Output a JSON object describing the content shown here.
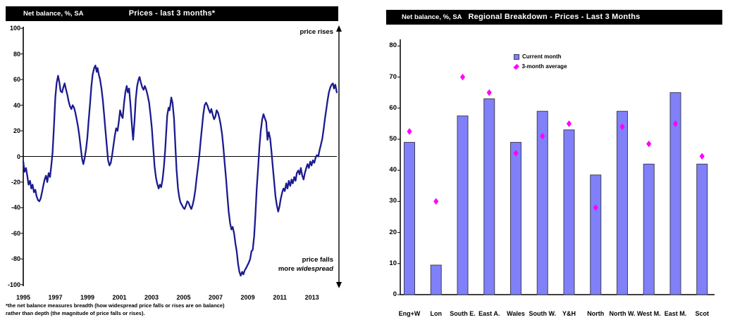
{
  "chart_data": [
    {
      "type": "line",
      "title": "Prices - last 3 months*",
      "unit_label": "Net balance, %, SA",
      "xlabel": "",
      "ylabel": "Net balance, %, SA",
      "ylim": [
        -100,
        100
      ],
      "xlim": [
        1995,
        2014.6
      ],
      "y_ticks": [
        100,
        80,
        60,
        40,
        20,
        0,
        -20,
        -40,
        -60,
        -80,
        -100
      ],
      "x_ticks": [
        1995,
        1997,
        1999,
        2001,
        2003,
        2005,
        2007,
        2009,
        2011,
        2013
      ],
      "grid": false,
      "line_color": "#1b1b8f",
      "annotations": {
        "top": "price rises",
        "bottom_line1": "price falls",
        "bottom_line2_parts": [
          "more ",
          "widespread"
        ]
      },
      "footnotes": [
        "*the net balance measures breadth (how widespread price falls or rises are on balance)",
        "rather than depth (the magnitude of price falls or rises)."
      ],
      "series": [
        {
          "name": "Net balance",
          "points": [
            [
              1995.0,
              -4
            ],
            [
              1995.08,
              -12
            ],
            [
              1995.17,
              -9
            ],
            [
              1995.25,
              -15
            ],
            [
              1995.33,
              -22
            ],
            [
              1995.42,
              -19
            ],
            [
              1995.5,
              -25
            ],
            [
              1995.58,
              -22
            ],
            [
              1995.67,
              -28
            ],
            [
              1995.75,
              -26
            ],
            [
              1995.83,
              -31
            ],
            [
              1995.92,
              -34
            ],
            [
              1996.0,
              -35
            ],
            [
              1996.08,
              -33
            ],
            [
              1996.17,
              -28
            ],
            [
              1996.25,
              -23
            ],
            [
              1996.33,
              -18
            ],
            [
              1996.42,
              -15
            ],
            [
              1996.5,
              -20
            ],
            [
              1996.58,
              -13
            ],
            [
              1996.67,
              -16
            ],
            [
              1996.75,
              -7
            ],
            [
              1996.83,
              3
            ],
            [
              1996.92,
              25
            ],
            [
              1997.0,
              46
            ],
            [
              1997.08,
              57
            ],
            [
              1997.17,
              63
            ],
            [
              1997.25,
              58
            ],
            [
              1997.33,
              51
            ],
            [
              1997.42,
              50
            ],
            [
              1997.5,
              54
            ],
            [
              1997.58,
              57
            ],
            [
              1997.67,
              52
            ],
            [
              1997.75,
              48
            ],
            [
              1997.83,
              43
            ],
            [
              1997.92,
              39
            ],
            [
              1998.0,
              37
            ],
            [
              1998.08,
              40
            ],
            [
              1998.17,
              38
            ],
            [
              1998.25,
              34
            ],
            [
              1998.33,
              29
            ],
            [
              1998.42,
              23
            ],
            [
              1998.5,
              16
            ],
            [
              1998.58,
              7
            ],
            [
              1998.67,
              -2
            ],
            [
              1998.75,
              -6
            ],
            [
              1998.83,
              -1
            ],
            [
              1998.92,
              6
            ],
            [
              1999.0,
              15
            ],
            [
              1999.08,
              28
            ],
            [
              1999.17,
              42
            ],
            [
              1999.25,
              55
            ],
            [
              1999.33,
              64
            ],
            [
              1999.42,
              69
            ],
            [
              1999.5,
              71
            ],
            [
              1999.58,
              66
            ],
            [
              1999.63,
              69
            ],
            [
              1999.71,
              64
            ],
            [
              1999.79,
              60
            ],
            [
              1999.88,
              53
            ],
            [
              1999.96,
              44
            ],
            [
              2000.04,
              33
            ],
            [
              2000.13,
              20
            ],
            [
              2000.21,
              8
            ],
            [
              2000.29,
              -3
            ],
            [
              2000.38,
              -7
            ],
            [
              2000.46,
              -5
            ],
            [
              2000.54,
              1
            ],
            [
              2000.63,
              9
            ],
            [
              2000.71,
              16
            ],
            [
              2000.79,
              22
            ],
            [
              2000.88,
              20
            ],
            [
              2000.96,
              27
            ],
            [
              2001.04,
              36
            ],
            [
              2001.12,
              32
            ],
            [
              2001.2,
              30
            ],
            [
              2001.29,
              42
            ],
            [
              2001.37,
              50
            ],
            [
              2001.45,
              55
            ],
            [
              2001.52,
              50
            ],
            [
              2001.6,
              53
            ],
            [
              2001.69,
              40
            ],
            [
              2001.77,
              25
            ],
            [
              2001.85,
              13
            ],
            [
              2001.94,
              28
            ],
            [
              2002.02,
              45
            ],
            [
              2002.1,
              55
            ],
            [
              2002.19,
              60
            ],
            [
              2002.25,
              62
            ],
            [
              2002.33,
              58
            ],
            [
              2002.42,
              54
            ],
            [
              2002.5,
              52
            ],
            [
              2002.58,
              55
            ],
            [
              2002.67,
              52
            ],
            [
              2002.75,
              48
            ],
            [
              2002.85,
              42
            ],
            [
              2002.94,
              32
            ],
            [
              2003.02,
              22
            ],
            [
              2003.1,
              8
            ],
            [
              2003.19,
              -8
            ],
            [
              2003.27,
              -16
            ],
            [
              2003.35,
              -21
            ],
            [
              2003.44,
              -25
            ],
            [
              2003.52,
              -22
            ],
            [
              2003.6,
              -24
            ],
            [
              2003.69,
              -18
            ],
            [
              2003.77,
              -8
            ],
            [
              2003.85,
              5
            ],
            [
              2003.92,
              20
            ],
            [
              2003.98,
              32
            ],
            [
              2004.06,
              38
            ],
            [
              2004.12,
              36
            ],
            [
              2004.17,
              40
            ],
            [
              2004.23,
              46
            ],
            [
              2004.31,
              42
            ],
            [
              2004.4,
              30
            ],
            [
              2004.48,
              10
            ],
            [
              2004.56,
              -10
            ],
            [
              2004.65,
              -25
            ],
            [
              2004.73,
              -32
            ],
            [
              2004.81,
              -36
            ],
            [
              2004.9,
              -38
            ],
            [
              2004.98,
              -40
            ],
            [
              2005.06,
              -41
            ],
            [
              2005.15,
              -38
            ],
            [
              2005.23,
              -35
            ],
            [
              2005.31,
              -36
            ],
            [
              2005.4,
              -39
            ],
            [
              2005.48,
              -41
            ],
            [
              2005.56,
              -38
            ],
            [
              2005.65,
              -33
            ],
            [
              2005.73,
              -26
            ],
            [
              2005.81,
              -17
            ],
            [
              2005.9,
              -8
            ],
            [
              2005.98,
              1
            ],
            [
              2006.06,
              12
            ],
            [
              2006.15,
              23
            ],
            [
              2006.23,
              33
            ],
            [
              2006.31,
              40
            ],
            [
              2006.4,
              42
            ],
            [
              2006.48,
              40
            ],
            [
              2006.56,
              37
            ],
            [
              2006.65,
              34
            ],
            [
              2006.73,
              37
            ],
            [
              2006.81,
              33
            ],
            [
              2006.9,
              29
            ],
            [
              2006.98,
              31
            ],
            [
              2007.06,
              36
            ],
            [
              2007.15,
              34
            ],
            [
              2007.23,
              30
            ],
            [
              2007.31,
              25
            ],
            [
              2007.4,
              17
            ],
            [
              2007.48,
              7
            ],
            [
              2007.56,
              -5
            ],
            [
              2007.65,
              -18
            ],
            [
              2007.73,
              -31
            ],
            [
              2007.81,
              -43
            ],
            [
              2007.9,
              -52
            ],
            [
              2007.98,
              -57
            ],
            [
              2008.06,
              -55
            ],
            [
              2008.15,
              -60
            ],
            [
              2008.23,
              -68
            ],
            [
              2008.31,
              -74
            ],
            [
              2008.4,
              -84
            ],
            [
              2008.48,
              -90
            ],
            [
              2008.56,
              -93
            ],
            [
              2008.65,
              -90
            ],
            [
              2008.73,
              -92
            ],
            [
              2008.81,
              -89
            ],
            [
              2008.9,
              -87
            ],
            [
              2008.98,
              -85
            ],
            [
              2009.06,
              -83
            ],
            [
              2009.15,
              -80
            ],
            [
              2009.23,
              -74
            ],
            [
              2009.31,
              -73
            ],
            [
              2009.4,
              -62
            ],
            [
              2009.48,
              -45
            ],
            [
              2009.56,
              -25
            ],
            [
              2009.65,
              -8
            ],
            [
              2009.73,
              8
            ],
            [
              2009.81,
              20
            ],
            [
              2009.9,
              29
            ],
            [
              2009.98,
              33
            ],
            [
              2010.06,
              30
            ],
            [
              2010.15,
              27
            ],
            [
              2010.23,
              13
            ],
            [
              2010.31,
              19
            ],
            [
              2010.4,
              14
            ],
            [
              2010.48,
              4
            ],
            [
              2010.56,
              -8
            ],
            [
              2010.65,
              -20
            ],
            [
              2010.73,
              -31
            ],
            [
              2010.81,
              -38
            ],
            [
              2010.9,
              -43
            ],
            [
              2010.98,
              -39
            ],
            [
              2011.06,
              -33
            ],
            [
              2011.15,
              -28
            ],
            [
              2011.23,
              -25
            ],
            [
              2011.31,
              -27
            ],
            [
              2011.4,
              -21
            ],
            [
              2011.48,
              -25
            ],
            [
              2011.56,
              -19
            ],
            [
              2011.65,
              -23
            ],
            [
              2011.73,
              -18
            ],
            [
              2011.81,
              -21
            ],
            [
              2011.9,
              -16
            ],
            [
              2011.98,
              -19
            ],
            [
              2012.06,
              -13
            ],
            [
              2012.15,
              -11
            ],
            [
              2012.23,
              -14
            ],
            [
              2012.31,
              -9
            ],
            [
              2012.4,
              -15
            ],
            [
              2012.48,
              -18
            ],
            [
              2012.56,
              -13
            ],
            [
              2012.65,
              -9
            ],
            [
              2012.73,
              -6
            ],
            [
              2012.81,
              -9
            ],
            [
              2012.9,
              -4
            ],
            [
              2012.98,
              -7
            ],
            [
              2013.06,
              -3
            ],
            [
              2013.15,
              -5
            ],
            [
              2013.23,
              -1
            ],
            [
              2013.31,
              1
            ],
            [
              2013.4,
              0
            ],
            [
              2013.48,
              5
            ],
            [
              2013.56,
              9
            ],
            [
              2013.65,
              14
            ],
            [
              2013.73,
              21
            ],
            [
              2013.81,
              29
            ],
            [
              2013.9,
              37
            ],
            [
              2013.98,
              44
            ],
            [
              2014.06,
              50
            ],
            [
              2014.15,
              54
            ],
            [
              2014.23,
              56
            ],
            [
              2014.31,
              57
            ],
            [
              2014.38,
              53
            ],
            [
              2014.46,
              56
            ],
            [
              2014.55,
              50
            ]
          ]
        }
      ]
    },
    {
      "type": "bar",
      "title": "Regional Breakdown - Prices - Last 3 Months",
      "unit_label": "Net balance, %, SA",
      "ylim": [
        0,
        80
      ],
      "y_ticks": [
        0,
        10,
        20,
        30,
        40,
        50,
        60,
        70,
        80
      ],
      "grid": false,
      "bar_color": "#8080f8",
      "bar_border_color": "#3f3f55",
      "marker_color": "#ff00ff",
      "legend_position": "top-center",
      "categories": [
        "Eng+W",
        "Lon",
        "South E.",
        "East A.",
        "Wales",
        "South W.",
        "Y&H",
        "North",
        "North W.",
        "West M.",
        "East M.",
        "Scot"
      ],
      "series": [
        {
          "name": "Current month",
          "type": "bar",
          "values": [
            49,
            9.5,
            57.5,
            63,
            49,
            59,
            53,
            38.5,
            59,
            42,
            65,
            42
          ]
        },
        {
          "name": "3-month average",
          "type": "point",
          "values": [
            52.5,
            30,
            70,
            65,
            45.5,
            51,
            55,
            28,
            54,
            48.5,
            55,
            44.5
          ]
        }
      ]
    }
  ]
}
